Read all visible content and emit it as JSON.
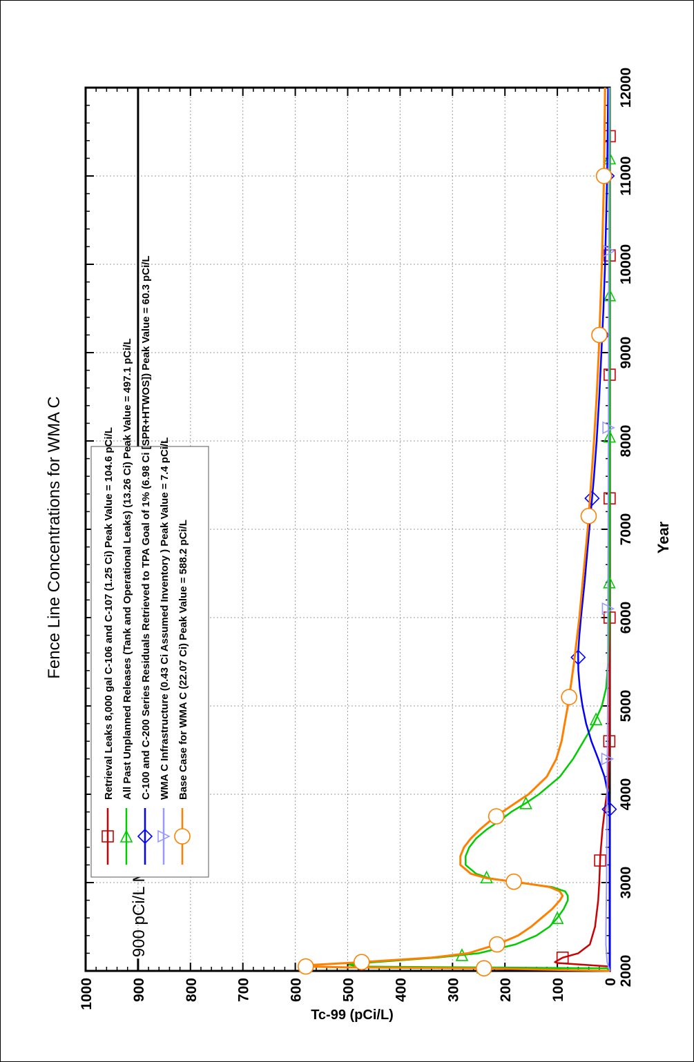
{
  "chart_data": {
    "type": "line",
    "title": "Fence Line Concentrations for WMA C",
    "xlabel": "Year",
    "ylabel": "Tc-99 (pCi/L)",
    "xlim": [
      2000,
      12000
    ],
    "ylim": [
      0,
      1000
    ],
    "x_ticks": [
      2000,
      3000,
      4000,
      5000,
      6000,
      7000,
      8000,
      9000,
      10000,
      11000,
      12000
    ],
    "y_ticks": [
      0,
      100,
      200,
      300,
      400,
      500,
      600,
      700,
      800,
      900,
      1000
    ],
    "grid": true,
    "legend_position": "top-left",
    "reference_line": {
      "value": 900,
      "label": "900 pCi/L MCL Derived Constituent Concentration"
    },
    "series": [
      {
        "name": "Retrieval Leaks 8,000  gal C-106 and C-107 (1.25 Ci) Peak Value = 104.6  pCi/L",
        "color": "#cc0000",
        "marker": "square",
        "x": [
          2050,
          2090,
          2100,
          2150,
          2200,
          2300,
          2500,
          2800,
          3000,
          3300,
          3600,
          3900,
          4100,
          4500,
          5000,
          6000,
          8000,
          12000
        ],
        "y": [
          0,
          100,
          104.6,
          90,
          60,
          38,
          28,
          22,
          20,
          18,
          14,
          8,
          3,
          1,
          0.5,
          0.3,
          0.2,
          0.1
        ],
        "marker_x": [
          2150,
          3250,
          4600,
          6000,
          7350,
          8750,
          10100,
          11450
        ]
      },
      {
        "name": "All Past Unplanned Releases (Tank and Operational Leaks) (13.26 Ci) Peak Value = 497.1 pCi/L",
        "color": "#00cc00",
        "marker": "triangle-right",
        "x": [
          2000,
          2030,
          2050,
          2070,
          2090,
          2150,
          2200,
          2300,
          2400,
          2500,
          2600,
          2700,
          2800,
          2850,
          2900,
          2950,
          3000,
          3050,
          3100,
          3200,
          3300,
          3400,
          3500,
          3600,
          3700,
          3800,
          3900,
          4000,
          4200,
          4400,
          4600,
          4800,
          5000,
          5200,
          5500,
          6000,
          7000,
          8000,
          10000,
          12000
        ],
        "y": [
          0,
          5,
          480,
          497.1,
          470,
          330,
          250,
          180,
          140,
          115,
          100,
          88,
          80,
          80,
          85,
          110,
          175,
          230,
          255,
          275,
          275,
          268,
          255,
          235,
          210,
          188,
          160,
          135,
          95,
          70,
          50,
          30,
          15,
          7,
          3,
          1,
          0.5,
          0.3,
          0.2,
          0.1
        ],
        "marker_x": [
          2040,
          2180,
          2600,
          3060,
          3900,
          4850,
          6400,
          8050,
          9650,
          11200
        ]
      },
      {
        "name": "C-100 and C-200 Series Residuals Retrieved to TPA Goal of 1% (6.98 Ci [SPR+HTWOS]) Peak Value = 60.3 pCi/L",
        "color": "#0000ff",
        "marker": "diamond",
        "x": [
          2000,
          3000,
          3800,
          4000,
          4200,
          4400,
          4600,
          4800,
          5000,
          5200,
          5400,
          5600,
          5800,
          6000,
          6400,
          6800,
          7200,
          7600,
          8000,
          8500,
          9000,
          9500,
          10000,
          10500,
          11000,
          11500,
          12000
        ],
        "y": [
          0,
          0,
          0.5,
          3,
          10,
          22,
          35,
          45,
          52,
          57,
          60,
          60.3,
          58,
          55,
          48,
          42,
          36,
          30,
          25,
          20,
          16,
          12,
          9,
          7,
          5,
          4,
          3
        ],
        "marker_x": [
          3830,
          5550,
          7350,
          9200,
          11000
        ]
      },
      {
        "name": "WMA C Infrastructure (0.43 Ci Assumed Inventory ) Peak Value = 7.4 pCi/L",
        "color": "#9999ff",
        "marker": "triangle-down",
        "x": [
          2000,
          2100,
          2300,
          2600,
          3000,
          3500,
          4000,
          5000,
          6000,
          7000,
          8000,
          9000,
          10000,
          11000,
          12000
        ],
        "y": [
          0,
          5,
          7.4,
          7,
          6,
          5.5,
          5,
          4,
          3.5,
          3,
          2.5,
          2,
          1.8,
          1.5,
          1.2
        ],
        "marker_x": [
          4400,
          6100,
          8150,
          10150
        ]
      },
      {
        "name": "Base Case for WMA C (22.07 Ci) Peak Value = 588.2 pCi/L",
        "color": "#ff8000",
        "marker": "circle",
        "x": [
          2000,
          2030,
          2040,
          2050,
          2060,
          2070,
          2090,
          2150,
          2200,
          2300,
          2400,
          2500,
          2600,
          2700,
          2800,
          2850,
          2900,
          2950,
          3000,
          3050,
          3100,
          3200,
          3300,
          3400,
          3500,
          3600,
          3700,
          3800,
          3900,
          4000,
          4200,
          4400,
          4600,
          4800,
          5000,
          5200,
          5500,
          6000,
          6500,
          7000,
          7500,
          8000,
          8500,
          9000,
          9500,
          10000,
          10500,
          11000,
          11500,
          12000
        ],
        "y": [
          0,
          240,
          500,
          580,
          588.2,
          560,
          500,
          340,
          270,
          215,
          175,
          150,
          130,
          110,
          95,
          90,
          95,
          115,
          170,
          235,
          265,
          285,
          285,
          278,
          265,
          248,
          228,
          205,
          180,
          155,
          120,
          102,
          92,
          86,
          80,
          75,
          68,
          58,
          50,
          42,
          36,
          30,
          25,
          21,
          18,
          15,
          13,
          11,
          10,
          9
        ],
        "marker_x": [
          2030,
          2050,
          2100,
          2300,
          3010,
          3750,
          5100,
          7150,
          9200,
          11000
        ]
      }
    ]
  }
}
